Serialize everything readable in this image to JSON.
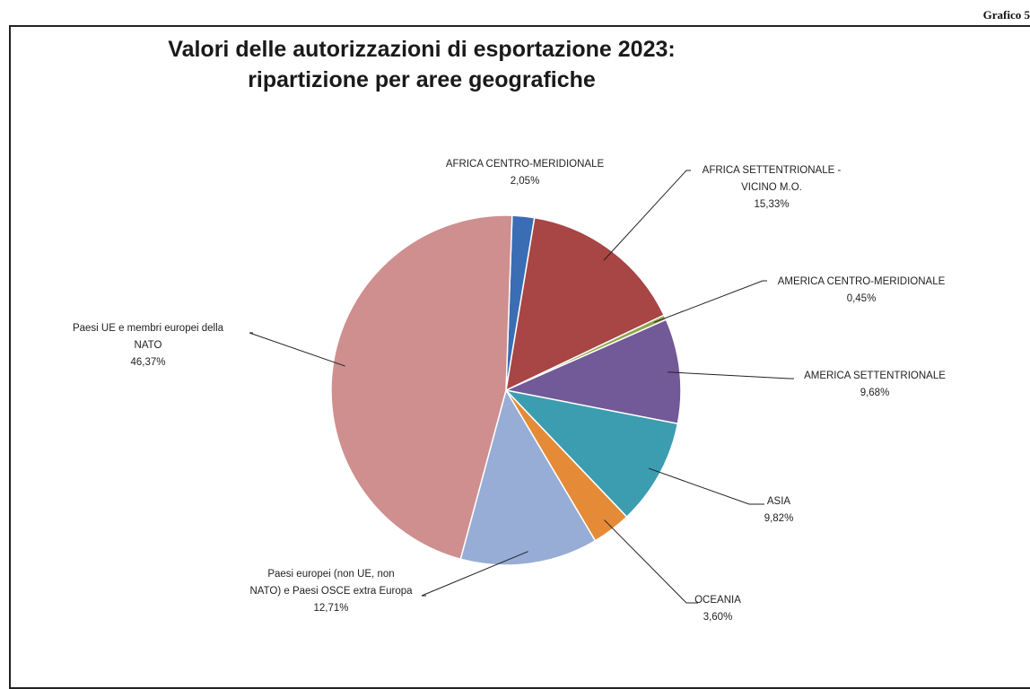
{
  "corner_label": "Grafico 5",
  "chart_data": {
    "type": "pie",
    "title": "Valori delle autorizzazioni di esportazione 2023:",
    "subtitle": "ripartizione per aree geografiche",
    "slices": [
      {
        "label_lines": [
          "AFRICA CENTRO-MERIDIONALE"
        ],
        "value": 2.05,
        "value_text": "2,05%",
        "color": "#3a6db3"
      },
      {
        "label_lines": [
          "AFRICA SETTENTRIONALE -",
          "VICINO M.O."
        ],
        "value": 15.33,
        "value_text": "15,33%",
        "color": "#a84545"
      },
      {
        "label_lines": [
          "AMERICA CENTRO-MERIDIONALE"
        ],
        "value": 0.45,
        "value_text": "0,45%",
        "color": "#8ea548"
      },
      {
        "label_lines": [
          "AMERICA SETTENTRIONALE"
        ],
        "value": 9.68,
        "value_text": "9,68%",
        "color": "#725998"
      },
      {
        "label_lines": [
          "ASIA"
        ],
        "value": 9.82,
        "value_text": "9,82%",
        "color": "#3c9db0"
      },
      {
        "label_lines": [
          "OCEANIA"
        ],
        "value": 3.6,
        "value_text": "3,60%",
        "color": "#e58a36"
      },
      {
        "label_lines": [
          "Paesi europei (non UE, non",
          "NATO) e Paesi OSCE extra Europa"
        ],
        "value": 12.71,
        "value_text": "12,71%",
        "color": "#97add6"
      },
      {
        "label_lines": [
          "Paesi UE e membri europei della",
          "NATO"
        ],
        "value": 46.37,
        "value_text": "46,37%",
        "color": "#cf8f8f"
      }
    ]
  }
}
